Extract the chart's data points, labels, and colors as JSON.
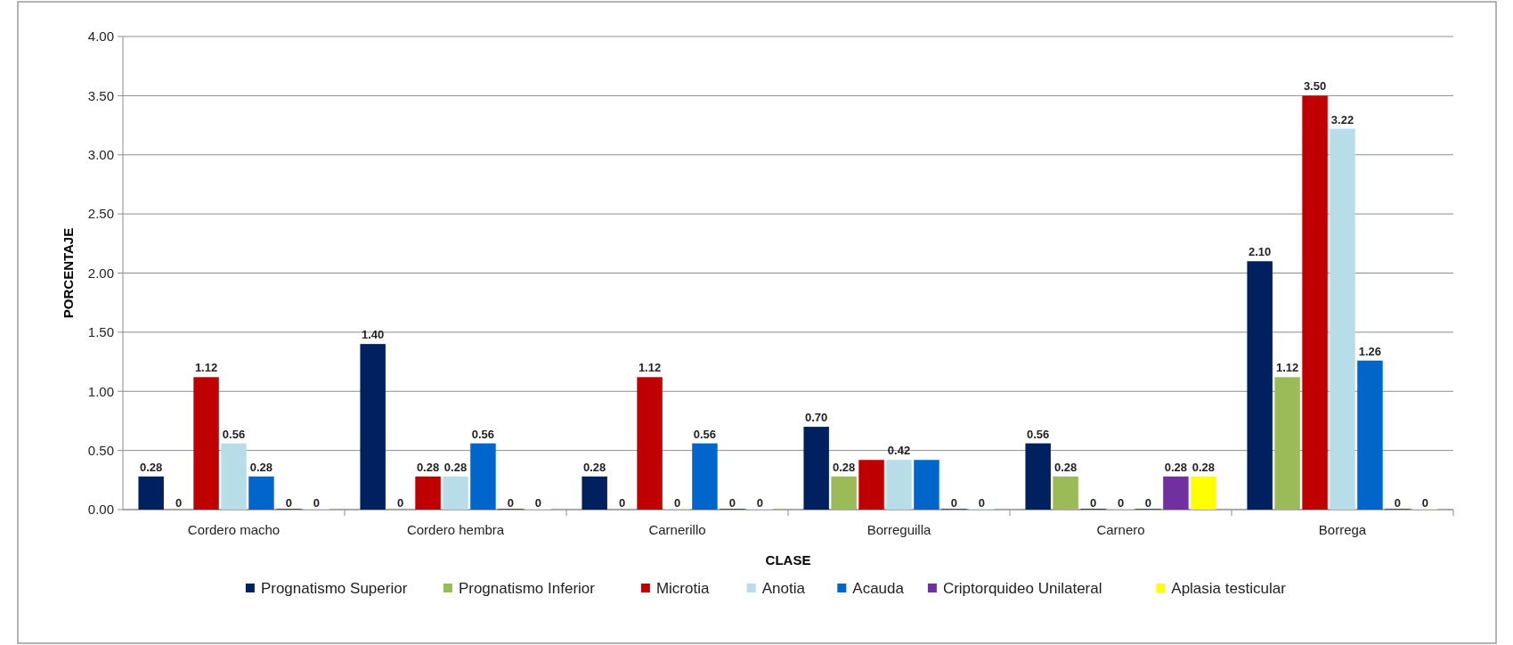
{
  "chart_data": {
    "type": "bar",
    "xlabel": "CLASE",
    "ylabel": "PORCENTAJE",
    "categories": [
      "Cordero macho",
      "Cordero hembra",
      "Carnerillo",
      "Borreguilla",
      "Carnero",
      "Borrega"
    ],
    "series": [
      {
        "name": "Prognatismo Superior",
        "color": "#002060",
        "values": [
          0.28,
          1.4,
          0.28,
          0.7,
          0.56,
          2.1
        ],
        "value_labels": [
          "0.28",
          "1.40",
          "0.28",
          "0.70",
          "0.56",
          "2.10"
        ]
      },
      {
        "name": "Prognatismo Inferior",
        "color": "#9bbb59",
        "values": [
          0,
          0,
          0,
          0.28,
          0.28,
          1.12
        ],
        "value_labels": [
          "0",
          "0",
          "0",
          "0.28",
          "0.28",
          "1.12"
        ]
      },
      {
        "name": "Microtia",
        "color": "#c00000",
        "values": [
          1.12,
          0.28,
          1.12,
          0.42,
          0,
          3.5
        ],
        "value_labels": [
          "1.12",
          "0.28",
          "1.12",
          null,
          "0",
          "3.50"
        ]
      },
      {
        "name": "Anotia",
        "color": "#b7dee8",
        "values": [
          0.56,
          0.28,
          0,
          0.42,
          0,
          3.22
        ],
        "value_labels": [
          "0.56",
          "0.28",
          "0",
          "0.42",
          "0",
          "3.22"
        ]
      },
      {
        "name": "Acauda",
        "color": "#0066cc",
        "values": [
          0.28,
          0.56,
          0.56,
          0.42,
          0,
          1.26
        ],
        "value_labels": [
          "0.28",
          "0.56",
          "0.56",
          null,
          "0",
          "1.26"
        ]
      },
      {
        "name": "Criptorquideo Unilateral",
        "color": "#7030a0",
        "values": [
          0,
          0,
          0,
          0,
          0.28,
          0
        ],
        "value_labels": [
          "0",
          "0",
          "0",
          "0",
          "0.28",
          "0"
        ]
      },
      {
        "name": "Aplasia testicular",
        "color": "#ffff00",
        "values": [
          0,
          0,
          0,
          0,
          0.28,
          0
        ],
        "value_labels": [
          "0",
          "0",
          "0",
          "0",
          "0.28",
          "0"
        ]
      }
    ],
    "ylim": [
      0,
      4
    ],
    "yticks": [
      "0.00",
      "0.50",
      "1.00",
      "1.50",
      "2.00",
      "2.50",
      "3.00",
      "3.50",
      "4.00"
    ],
    "grid": "y",
    "legend": "bottom"
  }
}
